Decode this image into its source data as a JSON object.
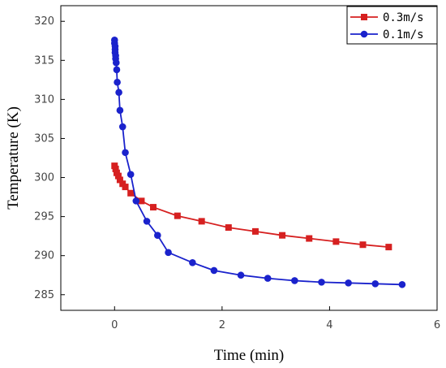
{
  "chart_data": {
    "type": "line",
    "xlabel": "Time (min)",
    "ylabel": "Temperature (K)",
    "xlim": [
      -1,
      6
    ],
    "ylim": [
      283,
      322
    ],
    "xticks": [
      0,
      2,
      4,
      6
    ],
    "yticks": [
      285,
      290,
      295,
      300,
      305,
      310,
      315,
      320
    ],
    "grid": false,
    "legend_position": "top-right",
    "series": [
      {
        "name": "0.3m/s",
        "color": "#d62020",
        "marker": "square",
        "x": [
          0.0,
          0.02,
          0.04,
          0.07,
          0.1,
          0.15,
          0.2,
          0.3,
          0.5,
          0.72,
          1.17,
          1.62,
          2.12,
          2.62,
          3.12,
          3.62,
          4.12,
          4.62,
          5.1
        ],
        "y": [
          301.5,
          301.1,
          300.6,
          300.2,
          299.7,
          299.2,
          298.8,
          298.0,
          297.0,
          296.2,
          295.1,
          294.4,
          293.6,
          293.1,
          292.6,
          292.2,
          291.8,
          291.4,
          291.1
        ]
      },
      {
        "name": "0.1m/s",
        "color": "#1a22cc",
        "marker": "circle",
        "x": [
          0.0,
          0.0,
          0.01,
          0.01,
          0.01,
          0.02,
          0.02,
          0.03,
          0.04,
          0.05,
          0.08,
          0.1,
          0.15,
          0.2,
          0.3,
          0.4,
          0.6,
          0.8,
          1.0,
          1.45,
          1.85,
          2.35,
          2.85,
          3.35,
          3.85,
          4.35,
          4.85,
          5.35
        ],
        "y": [
          317.6,
          317.2,
          316.8,
          316.4,
          316.0,
          315.6,
          315.2,
          314.7,
          313.8,
          312.2,
          310.9,
          308.6,
          306.5,
          303.2,
          300.4,
          297.0,
          294.4,
          292.6,
          290.4,
          289.1,
          288.1,
          287.5,
          287.1,
          286.8,
          286.6,
          286.5,
          286.4,
          286.3
        ]
      }
    ]
  }
}
